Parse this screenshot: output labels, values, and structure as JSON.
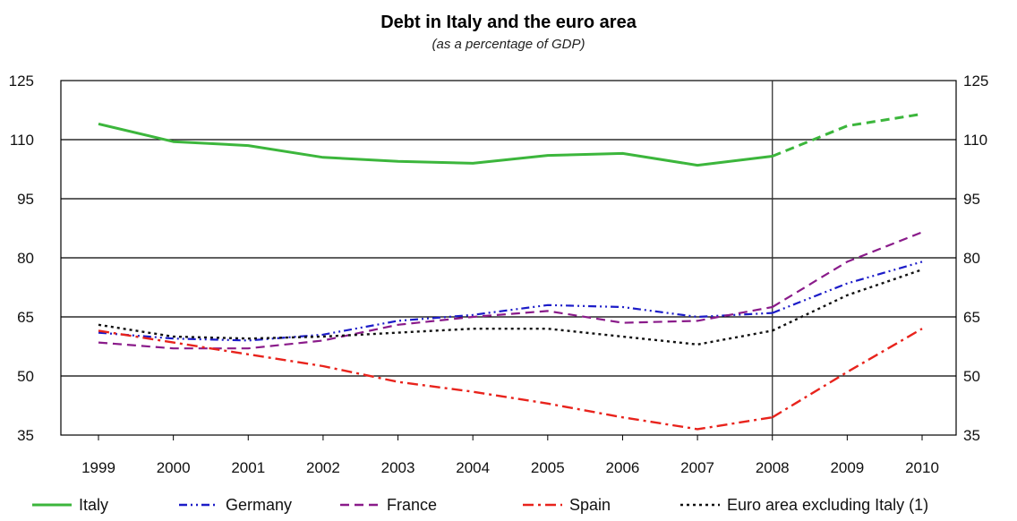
{
  "chart_data": {
    "type": "line",
    "title": "Debt in Italy and the euro area",
    "subtitle": "(as a percentage of GDP)",
    "xlabel": "",
    "ylabel": "",
    "ylim": [
      35,
      125
    ],
    "y_ticks": [
      35,
      50,
      65,
      80,
      95,
      110,
      125
    ],
    "categories": [
      "1999",
      "2000",
      "2001",
      "2002",
      "2003",
      "2004",
      "2005",
      "2006",
      "2007",
      "2008",
      "2009",
      "2010"
    ],
    "x": [
      1999,
      2000,
      2001,
      2002,
      2003,
      2004,
      2005,
      2006,
      2007,
      2008,
      2009,
      2010
    ],
    "grid": "horizontal",
    "vertical_marker_year": 2008,
    "legend_position": "bottom",
    "series": [
      {
        "name": "Italy",
        "color": "#3cb63c",
        "style": "solid",
        "forecast_style": "dashed",
        "values": [
          114,
          109.5,
          108.5,
          105.5,
          104.5,
          104,
          106,
          106.5,
          103.5,
          105.8,
          113.5,
          116.5
        ]
      },
      {
        "name": "Germany",
        "color": "#1c1cc8",
        "style": "dash-dot-dot",
        "values": [
          61,
          59.5,
          59,
          60.5,
          64,
          65.5,
          68,
          67.5,
          65,
          66,
          73.5,
          79
        ]
      },
      {
        "name": "France",
        "color": "#8a1b8a",
        "style": "dashed",
        "values": [
          58.5,
          57,
          57,
          59,
          63,
          65,
          66.5,
          63.5,
          64,
          67.5,
          79,
          86.5
        ]
      },
      {
        "name": "Spain",
        "color": "#e8231c",
        "style": "dash-dot",
        "values": [
          61.5,
          58.5,
          55.5,
          52.5,
          48.5,
          46,
          43,
          39.5,
          36.5,
          39.5,
          51,
          62
        ]
      },
      {
        "name": "Euro area excluding Italy (1)",
        "color": "#111111",
        "style": "dotted",
        "values": [
          63,
          60,
          59.5,
          60,
          61,
          62,
          62,
          60,
          58,
          61.5,
          70.5,
          77
        ]
      }
    ]
  },
  "legend": {
    "items": [
      {
        "label": "Italy",
        "color": "#3cb63c"
      },
      {
        "label": "Germany",
        "color": "#1c1cc8"
      },
      {
        "label": "France",
        "color": "#8a1b8a"
      },
      {
        "label": "Spain",
        "color": "#e8231c"
      },
      {
        "label": "Euro area excluding Italy (1)",
        "color": "#111111"
      }
    ]
  }
}
